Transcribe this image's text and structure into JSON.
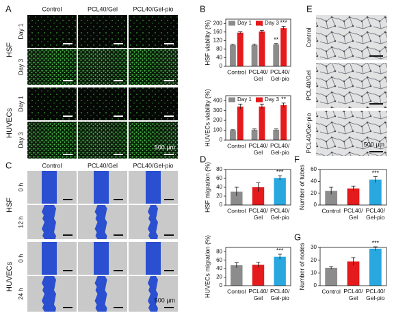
{
  "panels": {
    "A": {
      "label": "A",
      "columns": [
        "Control",
        "PCL40/Gel",
        "PCL40/Gel-pio"
      ],
      "groups": [
        {
          "name": "HSF",
          "rows": [
            "Day 1",
            "Day 3"
          ]
        },
        {
          "name": "HUVECs",
          "rows": [
            "Day 1",
            "Day 3"
          ]
        }
      ],
      "scale": "500 µm"
    },
    "C": {
      "label": "C",
      "columns": [
        "Control",
        "PCL40/Gel",
        "PCL40/Gel-pio"
      ],
      "groups": [
        {
          "name": "HSF",
          "rows": [
            "0 h",
            "12 h"
          ]
        },
        {
          "name": "HUVECs",
          "rows": [
            "0 h",
            "24 h"
          ]
        }
      ],
      "scale": "500 µm"
    },
    "E": {
      "label": "E",
      "rows": [
        "Control",
        "PCL40/Gel",
        "PCL40/Gel-pio"
      ],
      "scale": "500 µm"
    }
  },
  "chart_data": [
    {
      "type": "bar",
      "panel": "B",
      "y_label": "HSF viability (%)",
      "categories": [
        "Control",
        "PCL40/Gel",
        "PCL40/Gel-pio"
      ],
      "series": [
        {
          "name": "Day 1",
          "color": "#8c8c8c",
          "values": [
            100,
            100,
            102
          ],
          "error": [
            3,
            4,
            4
          ],
          "significance": [
            null,
            null,
            "**"
          ]
        },
        {
          "name": "Day 3",
          "color": "#e41a1c",
          "values": [
            157,
            162,
            178
          ],
          "error": [
            4,
            6,
            8
          ],
          "significance": [
            null,
            "*",
            "***"
          ]
        }
      ],
      "ylim": [
        0,
        220
      ],
      "yticks": [
        0,
        40,
        80,
        120,
        160,
        200
      ],
      "legend": "top-left"
    },
    {
      "type": "bar",
      "y_label": "HUVECs viability (%)",
      "categories": [
        "Control",
        "PCL40/Gel",
        "PCL40/Gel-pio"
      ],
      "series": [
        {
          "name": "Day 1",
          "color": "#8c8c8c",
          "values": [
            100,
            105,
            105
          ],
          "error": [
            5,
            8,
            8
          ],
          "significance": [
            null,
            null,
            null
          ]
        },
        {
          "name": "Day 3",
          "color": "#e41a1c",
          "values": [
            340,
            340,
            355
          ],
          "error": [
            25,
            25,
            20
          ],
          "significance": [
            null,
            null,
            "**"
          ]
        }
      ],
      "ylim": [
        0,
        450
      ],
      "yticks": [
        0,
        100,
        200,
        300,
        400
      ],
      "legend": "top-left"
    },
    {
      "type": "bar",
      "panel": "D",
      "y_label": "HSF migration (%)",
      "categories": [
        "Control",
        "PCL40/Gel",
        "PCL40/Gel-pio"
      ],
      "values": [
        30,
        40,
        61
      ],
      "error": [
        10,
        10,
        5
      ],
      "significance": [
        null,
        null,
        "***"
      ],
      "colors": [
        "#8c8c8c",
        "#e41a1c",
        "#29a8e0"
      ],
      "ylim": [
        0,
        80
      ],
      "yticks": [
        0,
        20,
        40,
        60,
        80
      ]
    },
    {
      "type": "bar",
      "y_label": "HUVECs migration (%)",
      "categories": [
        "Control",
        "PCL40/Gel",
        "PCL40/Gel-pio"
      ],
      "values": [
        48,
        49,
        68
      ],
      "error": [
        6,
        6,
        6
      ],
      "significance": [
        null,
        null,
        "***"
      ],
      "colors": [
        "#8c8c8c",
        "#e41a1c",
        "#29a8e0"
      ],
      "ylim": [
        0,
        90
      ],
      "yticks": [
        0,
        20,
        40,
        60,
        80
      ]
    },
    {
      "type": "bar",
      "panel": "F",
      "y_label": "Number of tubes",
      "categories": [
        "Control",
        "PCL40/Gel",
        "PCL40/Gel-pio"
      ],
      "values": [
        24,
        28,
        43
      ],
      "error": [
        6,
        4,
        5
      ],
      "significance": [
        null,
        null,
        "***"
      ],
      "colors": [
        "#8c8c8c",
        "#e41a1c",
        "#29a8e0"
      ],
      "ylim": [
        0,
        60
      ],
      "yticks": [
        0,
        20,
        40,
        60
      ]
    },
    {
      "type": "bar",
      "panel": "G",
      "y_label": "Number of nodes",
      "categories": [
        "Control",
        "PCL40/Gel",
        "PCL40/Gel-pio"
      ],
      "values": [
        14,
        19,
        29
      ],
      "error": [
        1,
        3,
        1.5
      ],
      "significance": [
        null,
        null,
        "***"
      ],
      "colors": [
        "#8c8c8c",
        "#e41a1c",
        "#29a8e0"
      ],
      "ylim": [
        0,
        30
      ],
      "yticks": [
        0,
        10,
        20,
        30
      ]
    }
  ]
}
